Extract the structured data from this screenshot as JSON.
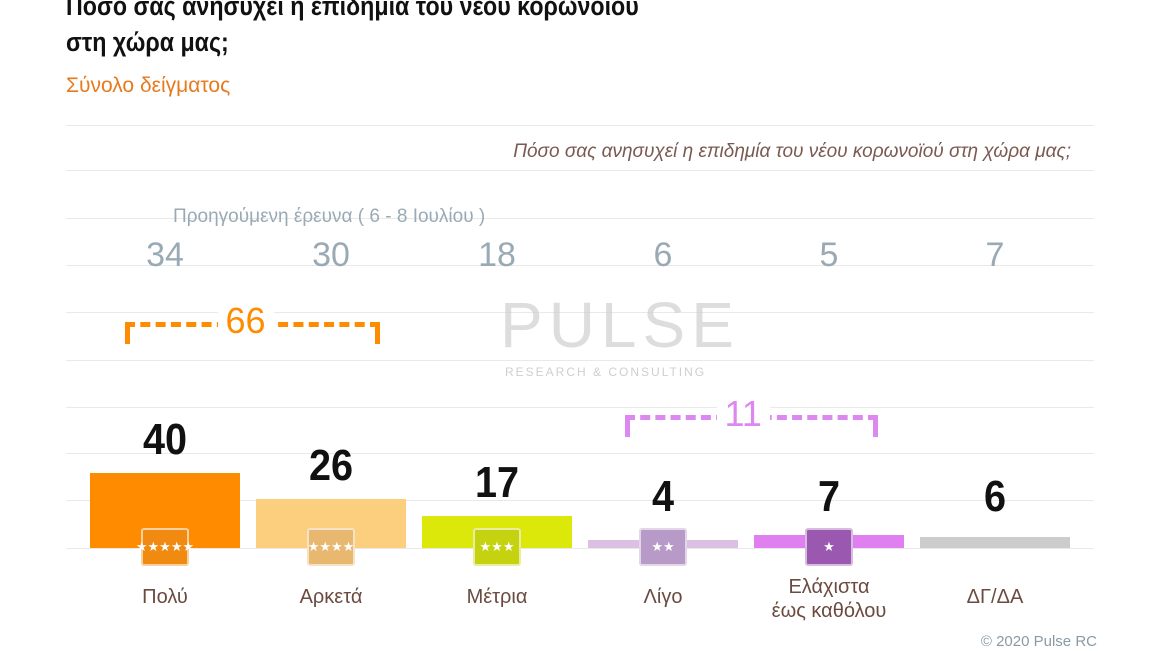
{
  "title": "Πόσο σας ανησυχεί η επιδημία του νέου κορωνοϊού στη χώρα μας;",
  "subtitle": "Σύνολο δείγματος",
  "chart_data": {
    "type": "bar",
    "title": "Πόσο σας ανησυχεί η επιδημία του νέου κορωνοϊού στη χώρα μας;",
    "categories": [
      "Πολύ",
      "Αρκετά",
      "Μέτρια",
      "Λίγο",
      "Ελάχιστα έως καθόλου",
      "ΔΓ/ΔΑ"
    ],
    "values": [
      40,
      26,
      17,
      4,
      7,
      6
    ],
    "previous_label": "Προηγούμενη έρευνα  ( 6 - 8  Ιουλίου )",
    "previous_values": [
      34,
      30,
      18,
      6,
      5,
      7
    ],
    "colors": [
      "#ff8c00",
      "#fbcf7e",
      "#dbe80a",
      "#dcc0e4",
      "#e080f0",
      "#cccccc"
    ],
    "badge_colors": [
      "#f08a10",
      "#e8b870",
      "#c5d210",
      "#b89ac8",
      "#9a58b0",
      null
    ],
    "stars": [
      5,
      4,
      3,
      2,
      1,
      0
    ],
    "groups": [
      {
        "label": "66",
        "color": "#ff8c00"
      },
      {
        "label": "11",
        "color": "#dd88f0"
      }
    ],
    "ylim": [
      0,
      45
    ],
    "grid": true
  },
  "logo": {
    "name": "PULSE",
    "tagline": "RESEARCH & CONSULTING"
  },
  "copyright": "© 2020 Pulse RC"
}
